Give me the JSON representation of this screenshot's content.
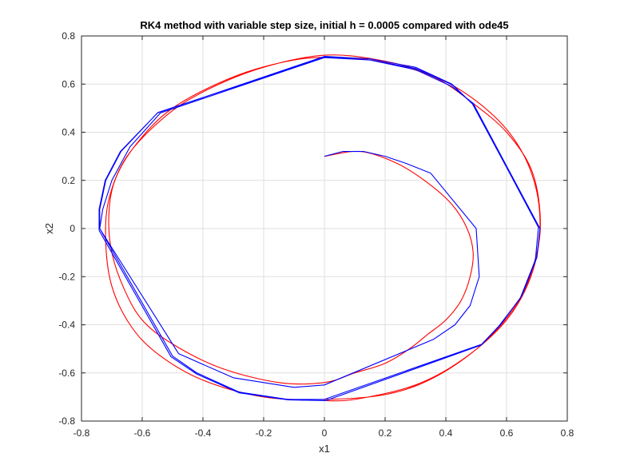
{
  "chart_data": {
    "type": "line",
    "title": "RK4 method with variable step size, initial h = 0.0005 compared with ode45",
    "xlabel": "x1",
    "ylabel": "x2",
    "xlim": [
      -0.8,
      0.8
    ],
    "ylim": [
      -0.8,
      0.8
    ],
    "xticks": [
      -0.8,
      -0.6,
      -0.4,
      -0.2,
      0,
      0.2,
      0.4,
      0.6,
      0.8
    ],
    "yticks": [
      -0.8,
      -0.6,
      -0.4,
      -0.2,
      0,
      0.2,
      0.4,
      0.6,
      0.8
    ],
    "xtick_labels": [
      "-0.8",
      "-0.6",
      "-0.4",
      "-0.2",
      "0",
      "0.2",
      "0.4",
      "0.6",
      "0.8"
    ],
    "ytick_labels": [
      "-0.8",
      "-0.6",
      "-0.4",
      "-0.2",
      "0",
      "0.2",
      "0.4",
      "0.6",
      "0.8"
    ],
    "grid": true,
    "series": [
      {
        "color": "#ff0000",
        "smooth": true,
        "points": [
          [
            0.0,
            0.3
          ],
          [
            0.12,
            0.32
          ],
          [
            0.24,
            0.27
          ],
          [
            0.34,
            0.19
          ],
          [
            0.42,
            0.1
          ],
          [
            0.47,
            0.0
          ],
          [
            0.49,
            -0.1
          ],
          [
            0.48,
            -0.2
          ],
          [
            0.45,
            -0.3
          ],
          [
            0.4,
            -0.38
          ],
          [
            0.34,
            -0.44
          ],
          [
            0.28,
            -0.5
          ],
          [
            0.2,
            -0.56
          ],
          [
            0.1,
            -0.6
          ],
          [
            0.0,
            -0.64
          ],
          [
            -0.15,
            -0.64
          ],
          [
            -0.34,
            -0.58
          ],
          [
            -0.5,
            -0.48
          ],
          [
            -0.6,
            -0.38
          ],
          [
            -0.66,
            -0.25
          ],
          [
            -0.7,
            -0.1
          ],
          [
            -0.71,
            0.05
          ],
          [
            -0.69,
            0.2
          ],
          [
            -0.62,
            0.35
          ],
          [
            -0.5,
            0.5
          ],
          [
            -0.3,
            0.63
          ],
          [
            -0.1,
            0.7
          ],
          [
            0.05,
            0.71
          ],
          [
            0.2,
            0.69
          ],
          [
            0.36,
            0.63
          ],
          [
            0.49,
            0.52
          ],
          [
            0.6,
            0.4
          ],
          [
            0.68,
            0.25
          ],
          [
            0.71,
            0.07
          ],
          [
            0.7,
            -0.1
          ],
          [
            0.64,
            -0.3
          ],
          [
            0.52,
            -0.48
          ],
          [
            0.36,
            -0.62
          ],
          [
            0.2,
            -0.69
          ],
          [
            0.0,
            -0.71
          ],
          [
            -0.2,
            -0.7
          ],
          [
            -0.4,
            -0.63
          ],
          [
            -0.55,
            -0.52
          ],
          [
            -0.64,
            -0.4
          ],
          [
            -0.7,
            -0.24
          ],
          [
            -0.72,
            -0.06
          ],
          [
            -0.71,
            0.12
          ],
          [
            -0.65,
            0.3
          ],
          [
            -0.52,
            0.47
          ],
          [
            -0.38,
            0.58
          ],
          [
            -0.2,
            0.67
          ],
          [
            0.0,
            0.72
          ],
          [
            0.18,
            0.7
          ],
          [
            0.35,
            0.64
          ],
          [
            0.5,
            0.53
          ],
          [
            0.62,
            0.38
          ],
          [
            0.69,
            0.2
          ],
          [
            0.71,
            0.0
          ],
          [
            0.68,
            -0.2
          ],
          [
            0.6,
            -0.38
          ],
          [
            0.46,
            -0.54
          ],
          [
            0.3,
            -0.65
          ],
          [
            0.1,
            -0.71
          ],
          [
            0.0,
            -0.715
          ]
        ]
      },
      {
        "color": "#0000ff",
        "smooth": false,
        "points": [
          [
            0.0,
            0.3
          ],
          [
            0.06,
            0.32
          ],
          [
            0.13,
            0.32
          ],
          [
            0.2,
            0.3
          ],
          [
            0.27,
            0.27
          ],
          [
            0.35,
            0.23
          ],
          [
            0.5,
            -0.0
          ],
          [
            0.51,
            -0.2
          ],
          [
            0.48,
            -0.32
          ],
          [
            0.43,
            -0.4
          ],
          [
            0.36,
            -0.46
          ],
          [
            0.0,
            -0.65
          ],
          [
            -0.1,
            -0.66
          ],
          [
            -0.3,
            -0.62
          ],
          [
            -0.48,
            -0.52
          ],
          [
            -0.74,
            0.0
          ],
          [
            -0.73,
            0.08
          ],
          [
            -0.7,
            0.2
          ],
          [
            -0.64,
            0.34
          ],
          [
            -0.54,
            0.48
          ],
          [
            0.0,
            0.71
          ],
          [
            0.15,
            0.7
          ],
          [
            0.3,
            0.66
          ],
          [
            0.42,
            0.59
          ],
          [
            0.49,
            0.52
          ],
          [
            0.71,
            0.0
          ],
          [
            0.7,
            -0.12
          ],
          [
            0.65,
            -0.28
          ],
          [
            0.58,
            -0.4
          ],
          [
            0.52,
            -0.48
          ],
          [
            0.0,
            -0.71
          ],
          [
            -0.12,
            -0.71
          ],
          [
            -0.28,
            -0.68
          ],
          [
            -0.42,
            -0.6
          ],
          [
            -0.5,
            -0.53
          ],
          [
            -0.74,
            -0.0
          ],
          [
            -0.74,
            0.08
          ],
          [
            -0.72,
            0.2
          ],
          [
            -0.67,
            0.32
          ],
          [
            -0.55,
            0.48
          ],
          [
            0.0,
            0.715
          ],
          [
            0.15,
            0.705
          ],
          [
            0.3,
            0.67
          ],
          [
            0.42,
            0.6
          ],
          [
            0.49,
            0.515
          ],
          [
            0.705,
            0.005
          ],
          [
            0.695,
            -0.13
          ],
          [
            0.645,
            -0.29
          ],
          [
            0.575,
            -0.405
          ],
          [
            0.515,
            -0.485
          ],
          [
            0.005,
            -0.715
          ],
          [
            -0.12,
            -0.712
          ],
          [
            -0.28,
            -0.683
          ],
          [
            -0.42,
            -0.605
          ],
          [
            -0.505,
            -0.533
          ],
          [
            -0.742,
            -0.008
          ],
          [
            -0.742,
            0.08
          ],
          [
            -0.722,
            0.2
          ],
          [
            -0.672,
            0.32
          ],
          [
            -0.548,
            0.482
          ],
          [
            0.0,
            0.712
          ],
          [
            0.15,
            0.7
          ],
          [
            0.3,
            0.665
          ],
          [
            0.42,
            0.598
          ],
          [
            0.488,
            0.517
          ],
          [
            0.707,
            0.003
          ]
        ]
      }
    ]
  }
}
